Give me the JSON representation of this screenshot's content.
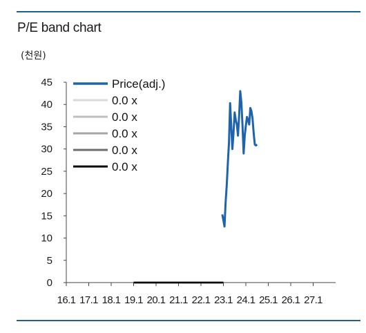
{
  "header": {
    "title": "P/E band chart",
    "unit": "(천원)"
  },
  "colors": {
    "rule": "#1f5f8b",
    "price": "#1f63ad",
    "band1": "#d9d9d9",
    "band2": "#bfbfbf",
    "band3": "#a6a6a6",
    "band4": "#6e6e6e",
    "band5": "#000000"
  },
  "chart_data": {
    "type": "line",
    "title": "P/E band chart",
    "ylabel": "(천원)",
    "xlabel": "",
    "ylim": [
      0,
      45
    ],
    "yticks": [
      0,
      5,
      10,
      15,
      20,
      25,
      30,
      35,
      40,
      45
    ],
    "xticks": [
      "16.1",
      "17.1",
      "18.1",
      "19.1",
      "20.1",
      "21.1",
      "22.1",
      "23.1",
      "24.1",
      "25.1",
      "26.1",
      "27.1"
    ],
    "xlim": [
      2016.0,
      2028.0
    ],
    "grid": false,
    "legend_position": "top-left",
    "series": [
      {
        "name": "Price(adj.)",
        "color": "#1f63ad",
        "points": [
          [
            2022.95,
            15.3
          ],
          [
            2023.0,
            14.0
          ],
          [
            2023.05,
            12.6
          ],
          [
            2023.1,
            18.0
          ],
          [
            2023.15,
            22.0
          ],
          [
            2023.2,
            27.0
          ],
          [
            2023.25,
            31.5
          ],
          [
            2023.3,
            40.3
          ],
          [
            2023.35,
            35.0
          ],
          [
            2023.4,
            30.0
          ],
          [
            2023.45,
            33.5
          ],
          [
            2023.5,
            38.2
          ],
          [
            2023.55,
            36.5
          ],
          [
            2023.6,
            35.5
          ],
          [
            2023.65,
            33.0
          ],
          [
            2023.7,
            37.5
          ],
          [
            2023.75,
            43.0
          ],
          [
            2023.8,
            40.5
          ],
          [
            2023.85,
            35.5
          ],
          [
            2023.9,
            29.0
          ],
          [
            2023.95,
            33.0
          ],
          [
            2024.0,
            35.2
          ],
          [
            2024.05,
            37.2
          ],
          [
            2024.1,
            36.5
          ],
          [
            2024.15,
            35.5
          ],
          [
            2024.2,
            39.2
          ],
          [
            2024.25,
            38.5
          ],
          [
            2024.3,
            36.8
          ],
          [
            2024.35,
            33.5
          ],
          [
            2024.4,
            31.0
          ],
          [
            2024.45,
            30.8
          ],
          [
            2024.5,
            31.0
          ]
        ]
      },
      {
        "name": "0.0 x",
        "color": "#d9d9d9",
        "points": [
          [
            2019.0,
            0
          ],
          [
            2023.0,
            0
          ]
        ]
      },
      {
        "name": "0.0 x",
        "color": "#bfbfbf",
        "points": [
          [
            2019.0,
            0
          ],
          [
            2023.0,
            0
          ]
        ]
      },
      {
        "name": "0.0 x",
        "color": "#a6a6a6",
        "points": [
          [
            2019.0,
            0
          ],
          [
            2023.0,
            0
          ]
        ]
      },
      {
        "name": "0.0 x",
        "color": "#6e6e6e",
        "points": [
          [
            2019.0,
            0
          ],
          [
            2023.0,
            0
          ]
        ]
      },
      {
        "name": "0.0 x",
        "color": "#000000",
        "points": [
          [
            2019.0,
            0
          ],
          [
            2023.0,
            0
          ]
        ]
      }
    ]
  }
}
